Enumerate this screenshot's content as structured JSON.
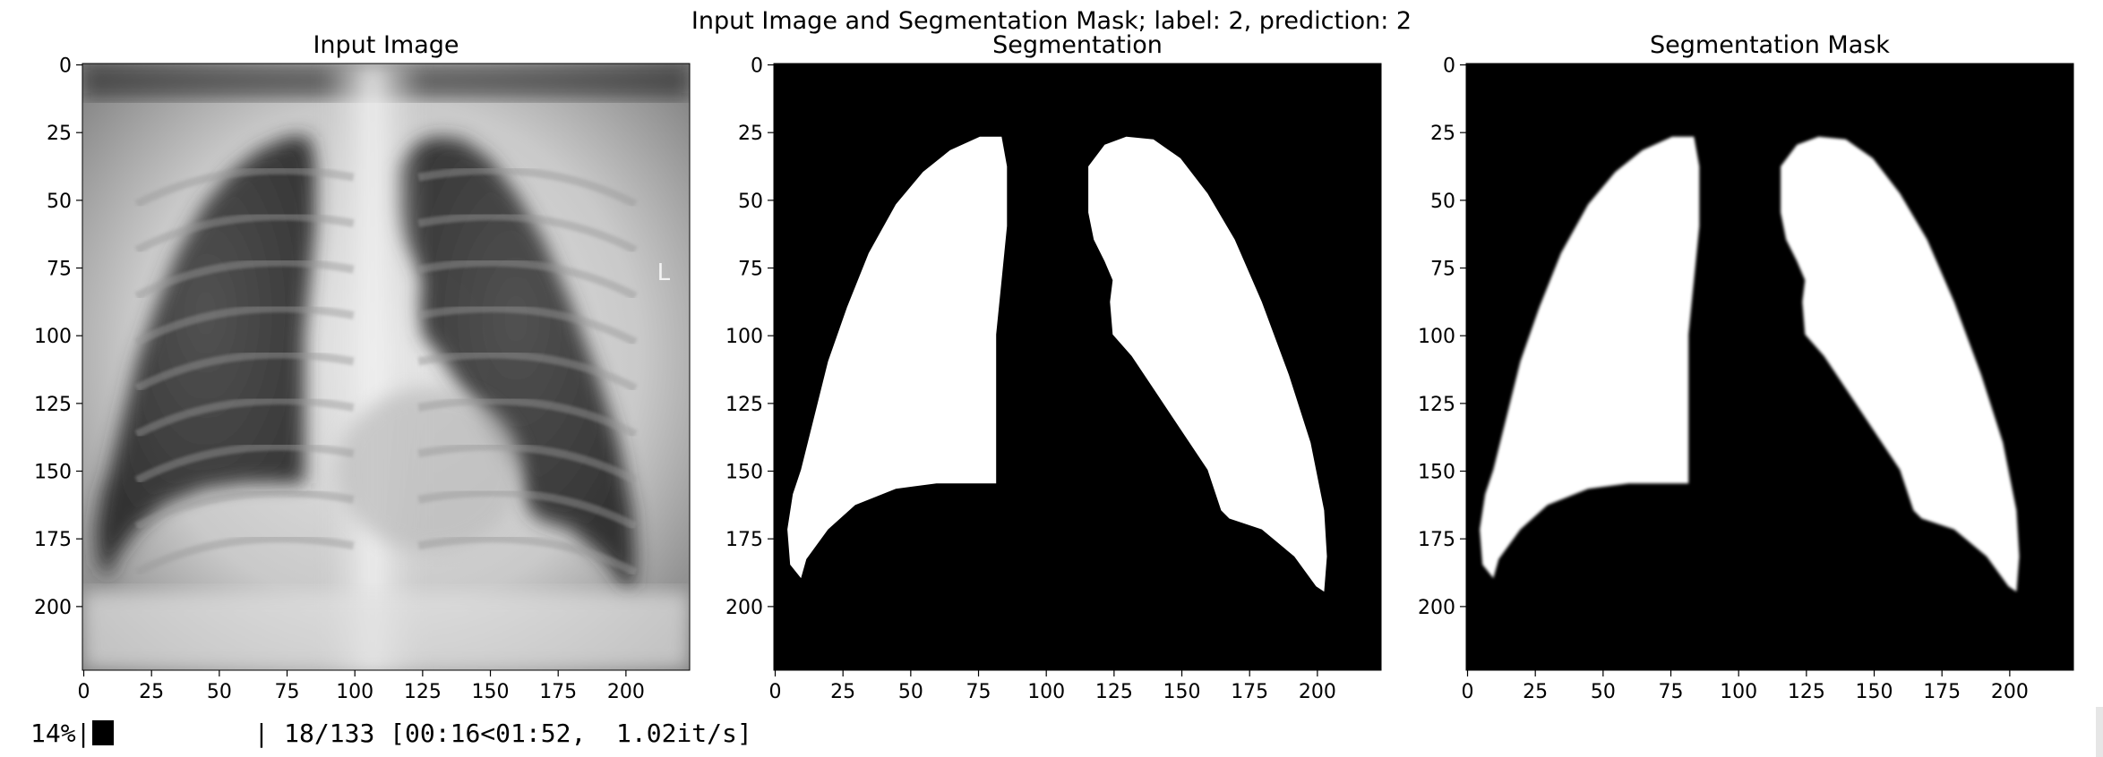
{
  "figure_title": "Input Image and Segmentation Mask; label: 2, prediction: 2",
  "chart_data": [
    {
      "type": "image",
      "title": "Input Image",
      "image_kind": "grayscale chest x-ray",
      "image_size": [
        224,
        224
      ],
      "xticks": [
        0,
        25,
        50,
        75,
        100,
        125,
        150,
        175,
        200
      ],
      "yticks": [
        0,
        25,
        50,
        75,
        100,
        125,
        150,
        175,
        200
      ],
      "xlim": [
        0,
        224
      ],
      "ylim": [
        224,
        0
      ],
      "grid": false
    },
    {
      "type": "image",
      "title": "Segmentation",
      "image_kind": "binary lung mask",
      "image_size": [
        224,
        224
      ],
      "xticks": [
        0,
        25,
        50,
        75,
        100,
        125,
        150,
        175,
        200
      ],
      "yticks": [
        0,
        25,
        50,
        75,
        100,
        125,
        150,
        175,
        200
      ],
      "xlim": [
        0,
        224
      ],
      "ylim": [
        224,
        0
      ],
      "grid": false,
      "colors": {
        "background": "#000000",
        "mask": "#ffffff"
      }
    },
    {
      "type": "image",
      "title": "Segmentation Mask",
      "image_kind": "smoothed lung mask",
      "image_size": [
        224,
        224
      ],
      "xticks": [
        0,
        25,
        50,
        75,
        100,
        125,
        150,
        175,
        200
      ],
      "yticks": [
        0,
        25,
        50,
        75,
        100,
        125,
        150,
        175,
        200
      ],
      "xlim": [
        0,
        224
      ],
      "ylim": [
        224,
        0
      ],
      "grid": false,
      "colors": {
        "background": "#000000",
        "mask": "#ffffff"
      }
    }
  ],
  "progress": {
    "percent_label": "14%|",
    "status": "| 18/133 [00:16<01:52,  1.02it/s]",
    "fraction": 0.135
  },
  "left_lung_points": [
    [
      7,
      159
    ],
    [
      10,
      150
    ],
    [
      15,
      130
    ],
    [
      20,
      110
    ],
    [
      27,
      90
    ],
    [
      35,
      70
    ],
    [
      45,
      52
    ],
    [
      55,
      40
    ],
    [
      65,
      32
    ],
    [
      76,
      27
    ],
    [
      84,
      27
    ],
    [
      86,
      38
    ],
    [
      86,
      60
    ],
    [
      84,
      80
    ],
    [
      82,
      100
    ],
    [
      82,
      125
    ],
    [
      82,
      148
    ],
    [
      82,
      155
    ],
    [
      60,
      155
    ],
    [
      45,
      157
    ],
    [
      30,
      163
    ],
    [
      20,
      172
    ],
    [
      12,
      183
    ],
    [
      10,
      190
    ],
    [
      6,
      185
    ],
    [
      5,
      172
    ]
  ],
  "right_lung_points": [
    [
      116,
      38
    ],
    [
      122,
      30
    ],
    [
      130,
      27
    ],
    [
      140,
      28
    ],
    [
      150,
      35
    ],
    [
      160,
      48
    ],
    [
      170,
      65
    ],
    [
      180,
      88
    ],
    [
      190,
      115
    ],
    [
      198,
      140
    ],
    [
      203,
      165
    ],
    [
      204,
      182
    ],
    [
      203,
      195
    ],
    [
      200,
      193
    ],
    [
      192,
      182
    ],
    [
      180,
      172
    ],
    [
      168,
      168
    ],
    [
      165,
      165
    ],
    [
      160,
      150
    ],
    [
      150,
      135
    ],
    [
      140,
      120
    ],
    [
      132,
      108
    ],
    [
      125,
      100
    ],
    [
      124,
      88
    ],
    [
      125,
      80
    ],
    [
      122,
      73
    ],
    [
      118,
      65
    ],
    [
      116,
      55
    ]
  ]
}
